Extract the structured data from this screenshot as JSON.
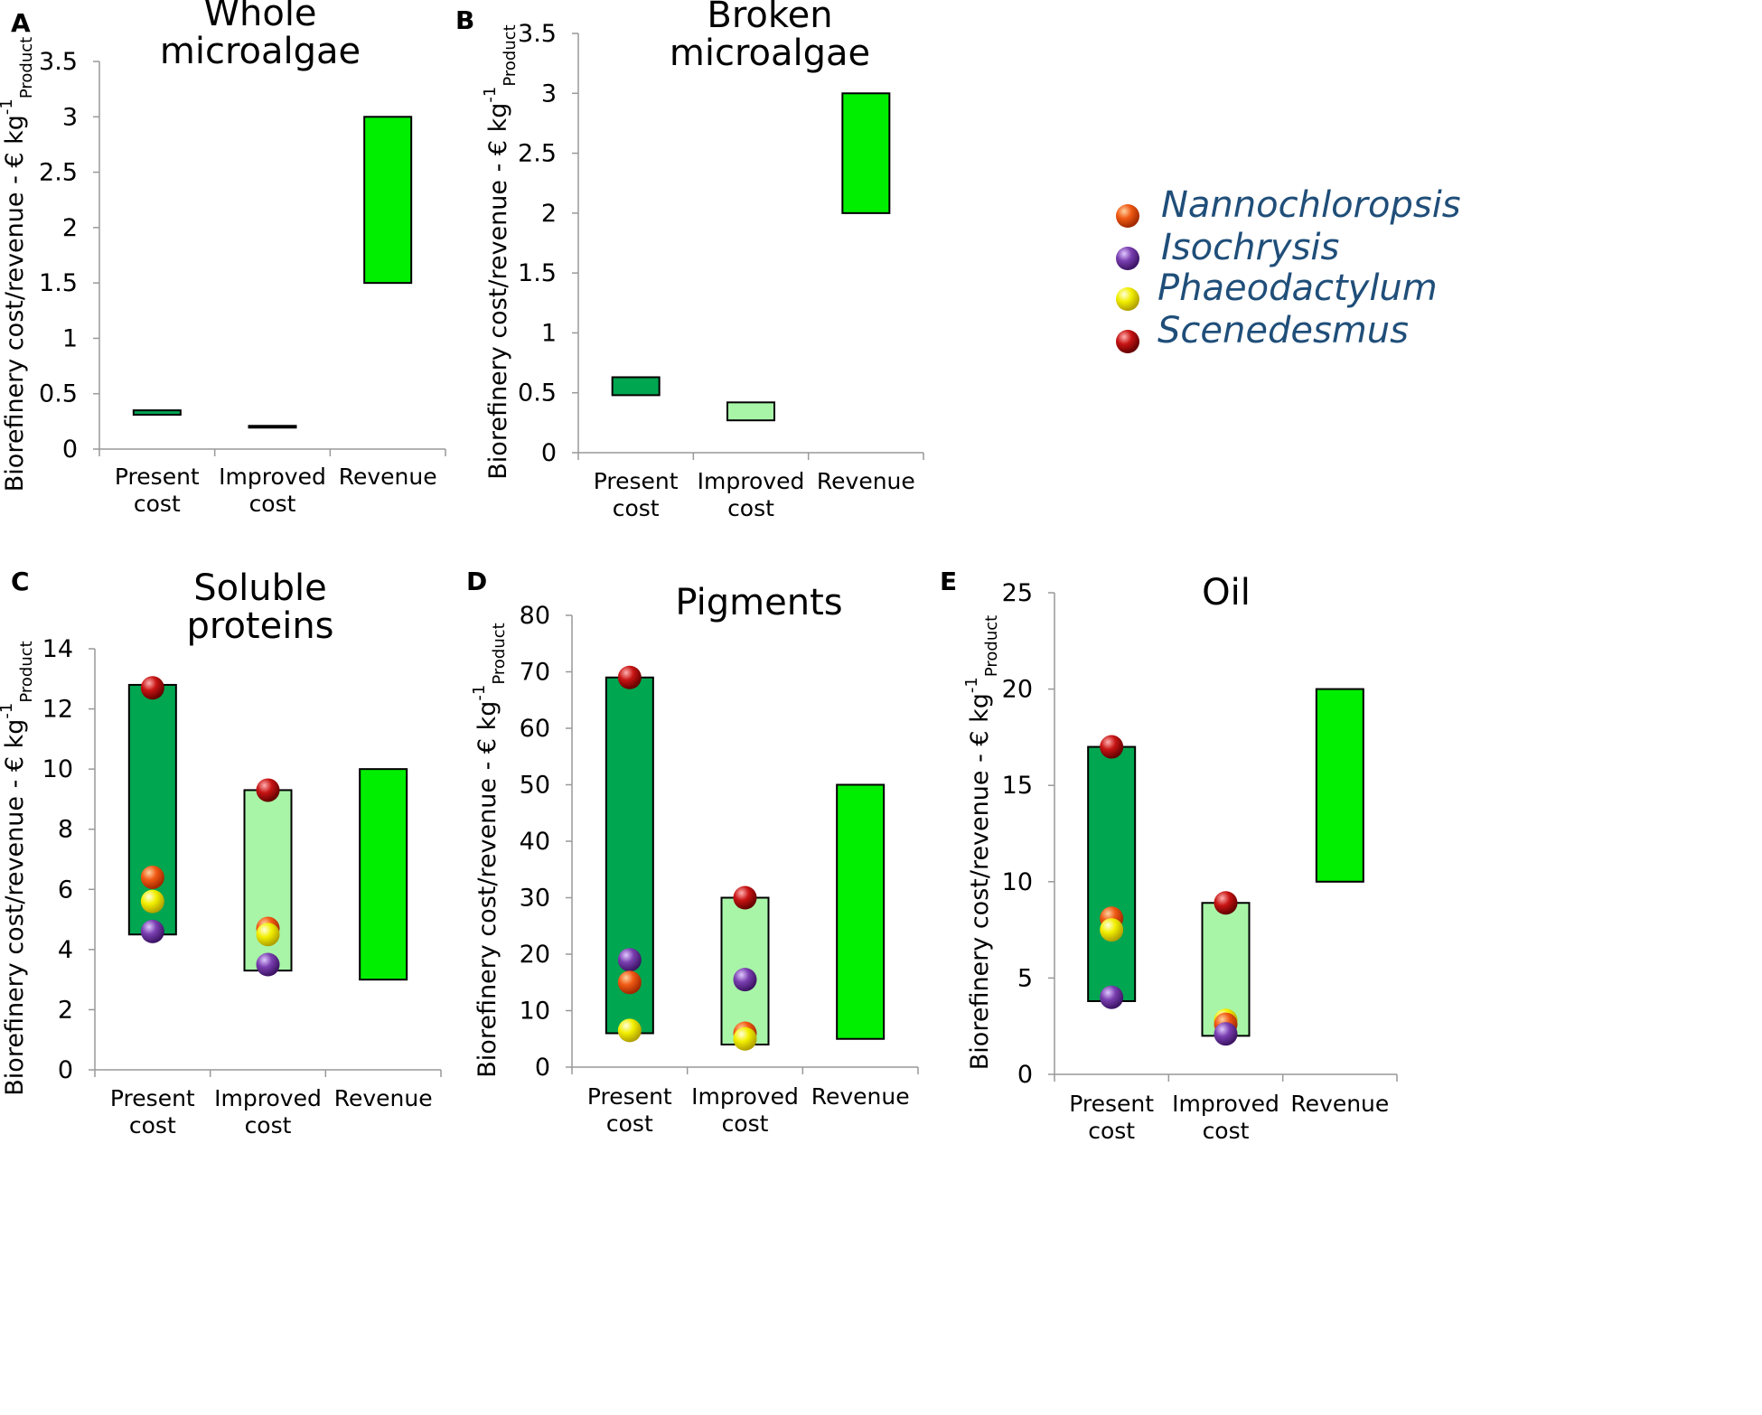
{
  "legend": [
    {
      "name": "Nannochloropsis",
      "color": "#f05a14"
    },
    {
      "name": "Isochrysis",
      "color": "#7a3fb0"
    },
    {
      "name": "Phaeodactylum",
      "color": "#f2ef00"
    },
    {
      "name": "Scenedesmus",
      "color": "#c81414"
    }
  ],
  "chart_data": [
    {
      "type": "bar",
      "panel": "A",
      "title_lines": [
        "Whole",
        "microalgae"
      ],
      "ylabel": "Biorefinery cost/revenue - € kg",
      "ylabel_sup": "-1",
      "ylabel_sub": "Product",
      "ylim": [
        0,
        3.5
      ],
      "yticks": [
        "0",
        "0.5",
        "1",
        "1.5",
        "2",
        "2.5",
        "3",
        "3.5"
      ],
      "categories": [
        [
          "Present",
          "cost"
        ],
        [
          "Improved",
          "cost"
        ],
        [
          "Revenue"
        ]
      ],
      "ranges": [
        {
          "low": 0.31,
          "high": 0.35,
          "color": "#00a650"
        },
        {
          "low": 0.2,
          "high": 0.21,
          "color": "#000000"
        },
        {
          "low": 1.5,
          "high": 3.0,
          "color": "#00ee00"
        }
      ],
      "points": []
    },
    {
      "type": "bar",
      "panel": "B",
      "title_lines": [
        "Broken",
        "microalgae"
      ],
      "ylabel": "Biorefinery cost/revenue - € kg",
      "ylabel_sup": "-1",
      "ylabel_sub": "Product",
      "ylim": [
        0,
        3.5
      ],
      "yticks": [
        "0",
        "0.5",
        "1",
        "1.5",
        "2",
        "2.5",
        "3",
        "3.5"
      ],
      "categories": [
        [
          "Present",
          "cost"
        ],
        [
          "Improved",
          "cost"
        ],
        [
          "Revenue"
        ]
      ],
      "ranges": [
        {
          "low": 0.48,
          "high": 0.63,
          "color": "#00a650"
        },
        {
          "low": 0.27,
          "high": 0.42,
          "color": "#a8f5a8"
        },
        {
          "low": 2.0,
          "high": 3.0,
          "color": "#00ee00"
        }
      ],
      "points": []
    },
    {
      "type": "bar",
      "panel": "C",
      "title_lines": [
        "Soluble",
        "proteins"
      ],
      "ylabel": "Biorefinery cost/revenue - € kg",
      "ylabel_sup": "-1",
      "ylabel_sub": "Product",
      "ylim": [
        0,
        14
      ],
      "yticks": [
        "0",
        "2",
        "4",
        "6",
        "8",
        "10",
        "12",
        "14"
      ],
      "categories": [
        [
          "Present",
          "cost"
        ],
        [
          "Improved",
          "cost"
        ],
        [
          "Revenue"
        ]
      ],
      "ranges": [
        {
          "low": 4.5,
          "high": 12.8,
          "color": "#00a650"
        },
        {
          "low": 3.3,
          "high": 9.3,
          "color": "#a8f5a8"
        },
        {
          "low": 3.0,
          "high": 10.0,
          "color": "#00ee00"
        }
      ],
      "points": [
        {
          "cat": 0,
          "value": 12.7,
          "species": "Scenedesmus"
        },
        {
          "cat": 0,
          "value": 6.4,
          "species": "Nannochloropsis"
        },
        {
          "cat": 0,
          "value": 5.6,
          "species": "Phaeodactylum"
        },
        {
          "cat": 0,
          "value": 4.6,
          "species": "Isochrysis"
        },
        {
          "cat": 1,
          "value": 9.3,
          "species": "Scenedesmus"
        },
        {
          "cat": 1,
          "value": 4.7,
          "species": "Nannochloropsis"
        },
        {
          "cat": 1,
          "value": 4.5,
          "species": "Phaeodactylum"
        },
        {
          "cat": 1,
          "value": 3.5,
          "species": "Isochrysis"
        }
      ]
    },
    {
      "type": "bar",
      "panel": "D",
      "title_lines": [
        "Pigments"
      ],
      "ylabel": "Biorefinery cost/revenue - € kg",
      "ylabel_sup": "-1",
      "ylabel_sub": "Product",
      "ylim": [
        0,
        80
      ],
      "yticks": [
        "0",
        "10",
        "20",
        "30",
        "40",
        "50",
        "60",
        "70",
        "80"
      ],
      "categories": [
        [
          "Present",
          "cost"
        ],
        [
          "Improved",
          "cost"
        ],
        [
          "Revenue"
        ]
      ],
      "ranges": [
        {
          "low": 6,
          "high": 69,
          "color": "#00a650"
        },
        {
          "low": 4,
          "high": 30,
          "color": "#a8f5a8"
        },
        {
          "low": 5,
          "high": 50,
          "color": "#00ee00"
        }
      ],
      "points": [
        {
          "cat": 0,
          "value": 69,
          "species": "Scenedesmus"
        },
        {
          "cat": 0,
          "value": 19,
          "species": "Isochrysis"
        },
        {
          "cat": 0,
          "value": 15,
          "species": "Nannochloropsis"
        },
        {
          "cat": 0,
          "value": 6.5,
          "species": "Phaeodactylum"
        },
        {
          "cat": 1,
          "value": 30,
          "species": "Scenedesmus"
        },
        {
          "cat": 1,
          "value": 15.5,
          "species": "Isochrysis"
        },
        {
          "cat": 1,
          "value": 6,
          "species": "Nannochloropsis"
        },
        {
          "cat": 1,
          "value": 5,
          "species": "Phaeodactylum"
        }
      ]
    },
    {
      "type": "bar",
      "panel": "E",
      "title_lines": [
        "Oil"
      ],
      "ylabel": "Biorefinery cost/revenue - € kg",
      "ylabel_sup": "-1",
      "ylabel_sub": "Product",
      "ylim": [
        0,
        25
      ],
      "yticks": [
        "0",
        "5",
        "10",
        "15",
        "20",
        "25"
      ],
      "categories": [
        [
          "Present",
          "cost"
        ],
        [
          "Improved",
          "cost"
        ],
        [
          "Revenue"
        ]
      ],
      "ranges": [
        {
          "low": 3.8,
          "high": 17,
          "color": "#00a650"
        },
        {
          "low": 2.0,
          "high": 8.9,
          "color": "#a8f5a8"
        },
        {
          "low": 10,
          "high": 20,
          "color": "#00ee00"
        }
      ],
      "points": [
        {
          "cat": 0,
          "value": 17,
          "species": "Scenedesmus"
        },
        {
          "cat": 0,
          "value": 8.1,
          "species": "Nannochloropsis"
        },
        {
          "cat": 0,
          "value": 7.5,
          "species": "Phaeodactylum"
        },
        {
          "cat": 0,
          "value": 4.0,
          "species": "Isochrysis"
        },
        {
          "cat": 1,
          "value": 8.9,
          "species": "Scenedesmus"
        },
        {
          "cat": 1,
          "value": 2.8,
          "species": "Phaeodactylum"
        },
        {
          "cat": 1,
          "value": 2.6,
          "species": "Nannochloropsis"
        },
        {
          "cat": 1,
          "value": 2.1,
          "species": "Isochrysis"
        }
      ]
    }
  ]
}
